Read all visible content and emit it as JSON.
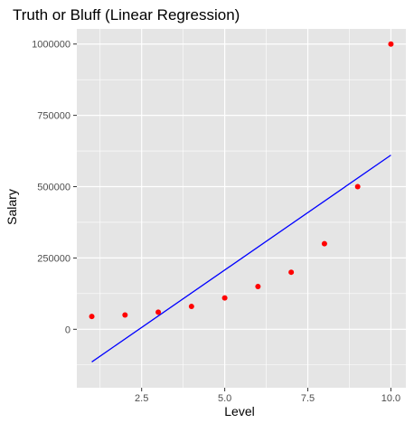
{
  "chart_data": {
    "type": "scatter",
    "title": "Truth or Bluff (Linear Regression)",
    "xlabel": "Level",
    "ylabel": "Salary",
    "xlim": [
      0.55,
      10.45
    ],
    "ylim": [
      -205000,
      1053000
    ],
    "x_ticks": [
      2.5,
      5.0,
      7.5,
      10.0
    ],
    "x_tick_labels": [
      "2.5",
      "5.0",
      "7.5",
      "10.0"
    ],
    "y_ticks": [
      0,
      250000,
      500000,
      750000,
      1000000
    ],
    "y_tick_labels": [
      "0",
      "250000",
      "500000",
      "750000",
      "1000000"
    ],
    "points": {
      "x": [
        1,
        2,
        3,
        4,
        5,
        6,
        7,
        8,
        9,
        10
      ],
      "y": [
        45000,
        50000,
        60000,
        80000,
        110000,
        150000,
        200000,
        300000,
        500000,
        1000000
      ],
      "color": "#ff0000"
    },
    "regression_line": {
      "x": [
        1,
        10
      ],
      "y": [
        -114454.55,
        610500
      ],
      "color": "#0000ff"
    },
    "panel_background": "#e5e5e5",
    "grid": true,
    "grid_color": "#ffffff"
  }
}
